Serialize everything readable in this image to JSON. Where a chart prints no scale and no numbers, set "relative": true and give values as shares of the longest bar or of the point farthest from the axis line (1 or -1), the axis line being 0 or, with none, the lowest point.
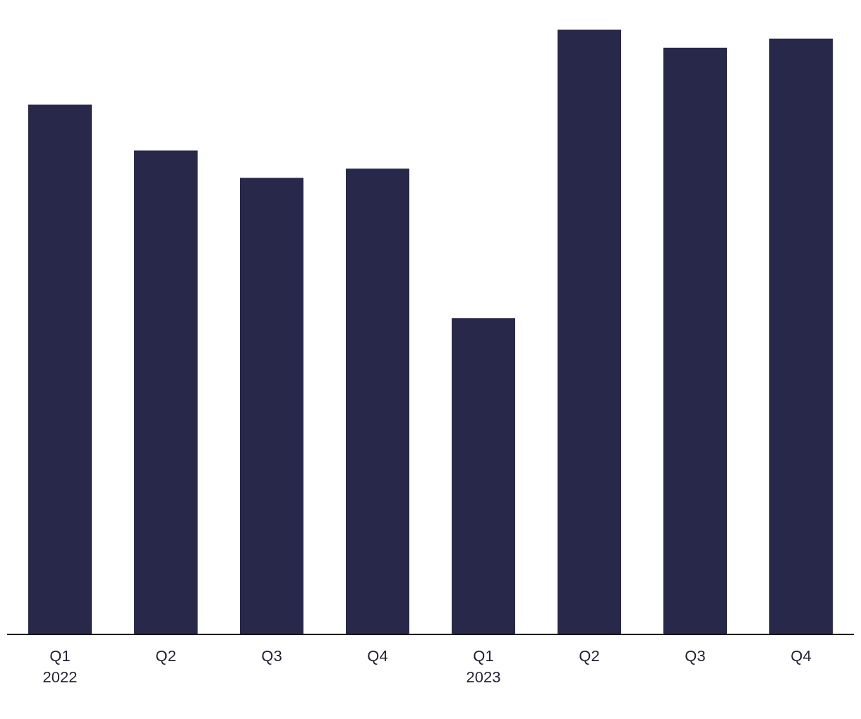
{
  "chart_data": {
    "type": "bar",
    "categories": [
      "Q1\n2022",
      "Q2",
      "Q3",
      "Q4",
      "Q1\n2023",
      "Q2",
      "Q3",
      "Q4"
    ],
    "values": [
      0.876,
      0.8,
      0.755,
      0.77,
      0.523,
      1,
      0.97,
      0.985
    ],
    "color": "#27284a",
    "relative": true
  }
}
